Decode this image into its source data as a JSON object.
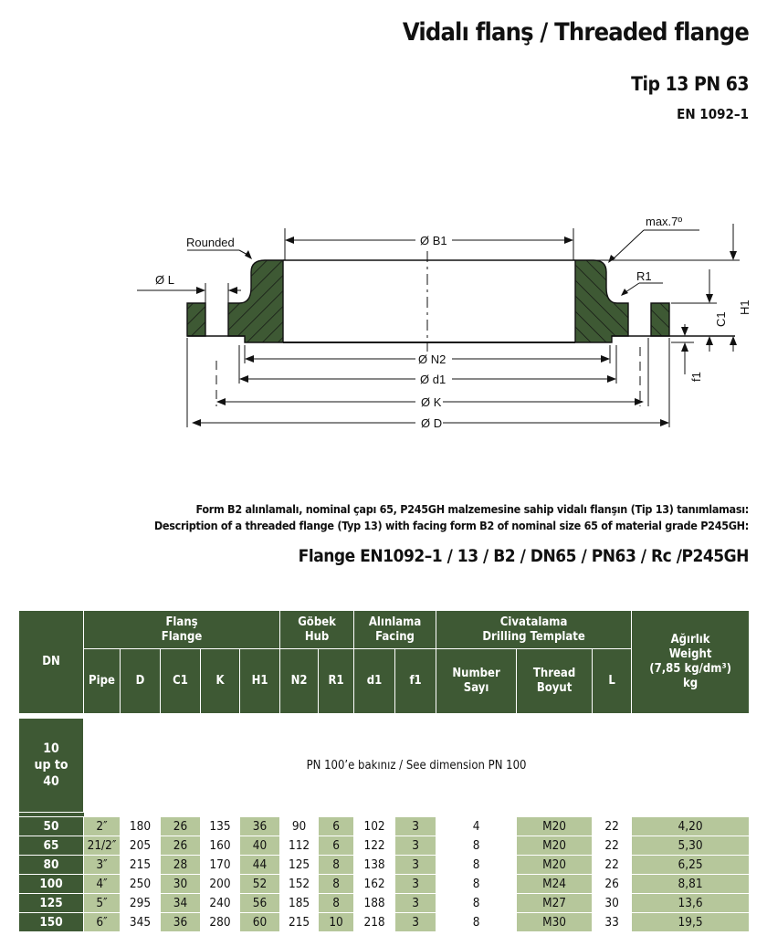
{
  "header": {
    "title": "Vidalı flanş / Threaded flange",
    "type": "Tip 13 PN 63",
    "standard": "EN 1092–1"
  },
  "diagram": {
    "labels": {
      "rounded": "Rounded",
      "max_angle": "max.7º",
      "L": "Ø L",
      "B1": "Ø B1",
      "R1": "R1",
      "H1": "H1",
      "C1": "C1",
      "f1": "f1",
      "N2": "Ø N2",
      "d1": "Ø d1",
      "K": "Ø K",
      "D": "Ø D"
    },
    "colors": {
      "section_fill": "#3e5934"
    }
  },
  "description": {
    "tr": "Form B2 alınlamalı, nominal çapı 65, P245GH malzemesine sahip vidalı flanşın (Tip 13) tanımlaması:",
    "en": "Description of a threaded flange (Typ 13) with facing form B2 of nominal size 65 of material grade P245GH:",
    "designation": "Flange EN1092–1 / 13 / B2 / DN65 / PN63 / Rc /P245GH"
  },
  "table": {
    "colors": {
      "header": "#3e5934",
      "shade": "#b6c79b"
    },
    "dn_header": "DN",
    "groups": [
      {
        "tr": "Flanş",
        "en": "Flange"
      },
      {
        "tr": "Göbek",
        "en": "Hub"
      },
      {
        "tr": "Alınlama",
        "en": "Facing"
      },
      {
        "tr": "Civatalama",
        "en": "Drilling Template"
      }
    ],
    "weight_header": {
      "tr": "Ağırlık",
      "en": "Weight",
      "density": "(7,85 kg/dm³)",
      "unit": "kg"
    },
    "columns": [
      "Pipe",
      "D",
      "C1",
      "K",
      "H1",
      "N2",
      "R1",
      "d1",
      "f1",
      "Number|Sayı",
      "Thread|Boyut",
      "L"
    ],
    "column_labels": {
      "pipe": "Pipe",
      "D": "D",
      "C1": "C1",
      "K": "K",
      "H1": "H1",
      "N2": "N2",
      "R1": "R1",
      "d1": "d1",
      "f1": "f1",
      "number_en": "Number",
      "number_tr": "Sayı",
      "thread_en": "Thread",
      "thread_tr": "Boyut",
      "L": "L"
    },
    "reference_row": {
      "dn": "10 up to 40",
      "dn_lines": [
        "10",
        "up to",
        "40"
      ],
      "message": "PN 100’e bakınız / See dimension PN 100"
    },
    "rows": [
      [
        "50",
        "2″",
        "180",
        "26",
        "135",
        "36",
        "90",
        "6",
        "102",
        "3",
        "4",
        "M20",
        "22",
        "4,20"
      ],
      [
        "65",
        "21/2″",
        "205",
        "26",
        "160",
        "40",
        "112",
        "6",
        "122",
        "3",
        "8",
        "M20",
        "22",
        "5,30"
      ],
      [
        "80",
        "3″",
        "215",
        "28",
        "170",
        "44",
        "125",
        "8",
        "138",
        "3",
        "8",
        "M20",
        "22",
        "6,25"
      ],
      [
        "100",
        "4″",
        "250",
        "30",
        "200",
        "52",
        "152",
        "8",
        "162",
        "3",
        "8",
        "M24",
        "26",
        "8,81"
      ],
      [
        "125",
        "5″",
        "295",
        "34",
        "240",
        "56",
        "185",
        "8",
        "188",
        "3",
        "8",
        "M27",
        "30",
        "13,6"
      ],
      [
        "150",
        "6″",
        "345",
        "36",
        "280",
        "60",
        "215",
        "10",
        "218",
        "3",
        "8",
        "M30",
        "33",
        "19,5"
      ]
    ]
  }
}
